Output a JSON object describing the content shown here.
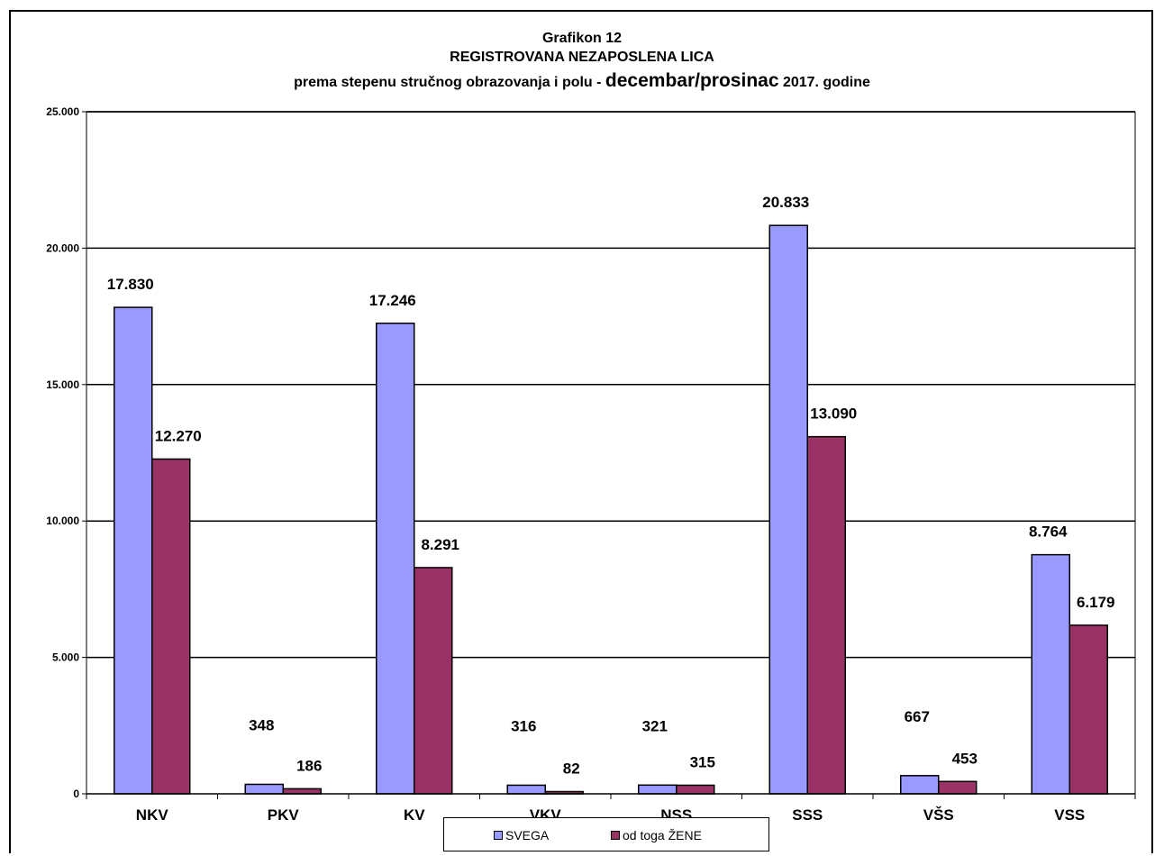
{
  "title": {
    "line1": "Grafikon 12",
    "line2": "REGISTROVANA  NEZAPOSLENA  LICA",
    "line3_a": "prema stepenu stručnog obrazovanja i polu - ",
    "line3_b": "decembar/prosinac",
    "line3_c": " 2017. godine"
  },
  "colors": {
    "svega": "#9999ff",
    "zene": "#993366"
  },
  "chart_data": {
    "type": "bar",
    "categories": [
      "NKV",
      "PKV",
      "KV",
      "VKV",
      "NSS",
      "SSS",
      "VŠS",
      "VSS"
    ],
    "series": [
      {
        "name": "SVEGA",
        "values": [
          17830,
          348,
          17246,
          316,
          321,
          20833,
          667,
          8764
        ],
        "labels": [
          "17.830",
          "348",
          "17.246",
          "316",
          "321",
          "20.833",
          "667",
          "8.764"
        ]
      },
      {
        "name": "od toga ŽENE",
        "values": [
          12270,
          186,
          8291,
          82,
          315,
          13090,
          453,
          6179
        ],
        "labels": [
          "12.270",
          "186",
          "8.291",
          "82",
          "315",
          "13.090",
          "453",
          "6.179"
        ]
      }
    ],
    "ylim": [
      0,
      25000
    ],
    "yticks": [
      0,
      5000,
      10000,
      15000,
      20000,
      25000
    ],
    "ytick_labels": [
      "0",
      "5.000",
      "10.000",
      "15.000",
      "20.000",
      "25.000"
    ],
    "grid": true,
    "legend_position": "bottom"
  }
}
